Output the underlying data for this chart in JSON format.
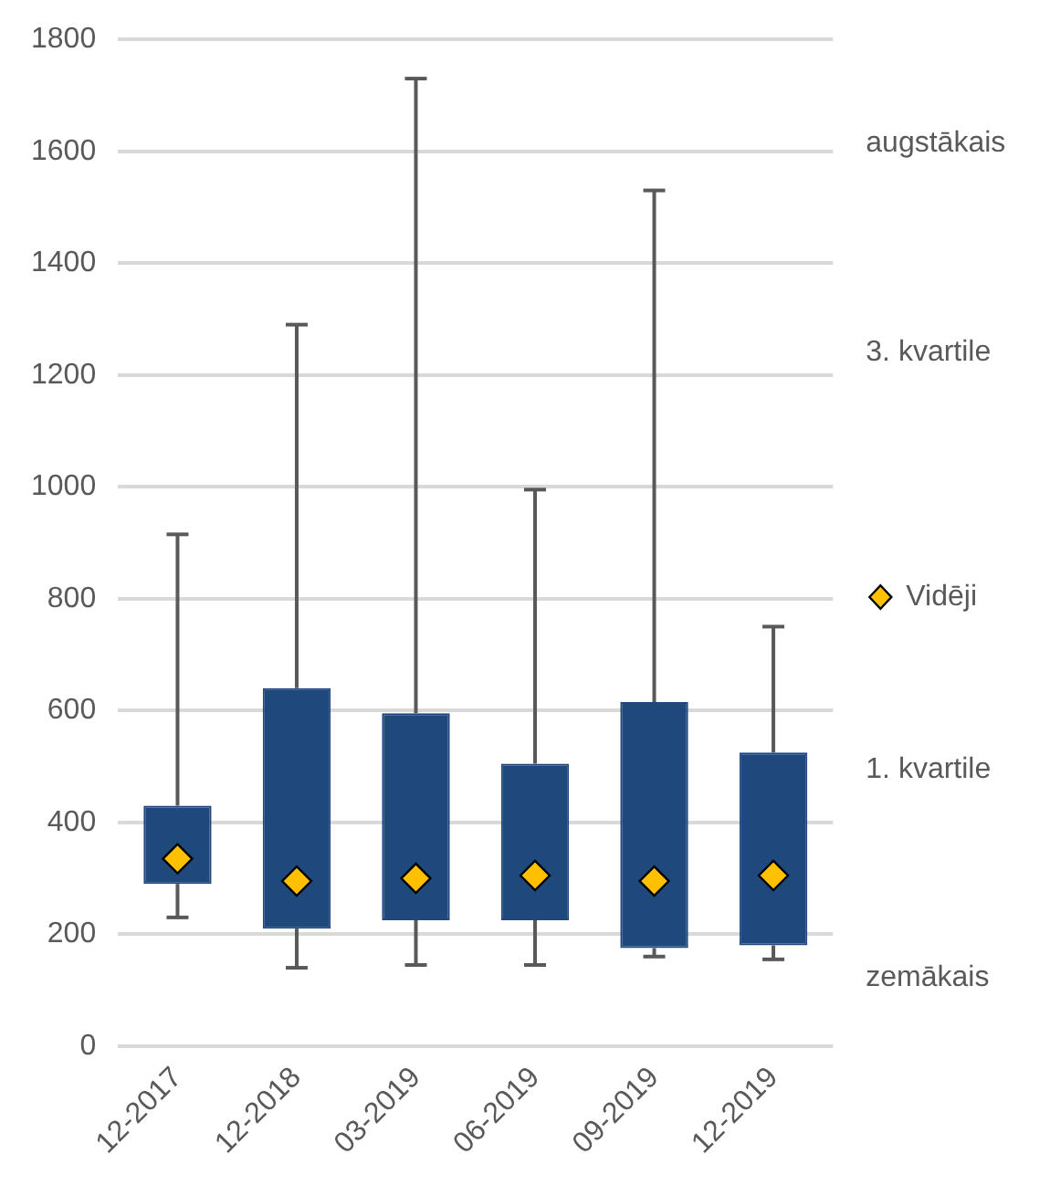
{
  "chart_data": {
    "type": "box",
    "categories": [
      "12-2017",
      "12-2018",
      "03-2019",
      "06-2019",
      "09-2019",
      "12-2019"
    ],
    "ylim": [
      0,
      1800
    ],
    "yticks": [
      0,
      200,
      400,
      600,
      800,
      1000,
      1200,
      1400,
      1600,
      1800
    ],
    "grid": "y",
    "legend": "right",
    "annotations": [
      "augstākais",
      "3. kvartile",
      "1. kvartile",
      "zemākais"
    ],
    "series": [
      {
        "type": "box",
        "color": "#1f497d",
        "boxes": [
          {
            "low": 230,
            "q1": 290,
            "q3": 430,
            "high": 915
          },
          {
            "low": 140,
            "q1": 210,
            "q3": 640,
            "high": 1290
          },
          {
            "low": 145,
            "q1": 225,
            "q3": 595,
            "high": 1730
          },
          {
            "low": 145,
            "q1": 225,
            "q3": 505,
            "high": 995
          },
          {
            "low": 160,
            "q1": 175,
            "q3": 615,
            "high": 1530
          },
          {
            "low": 155,
            "q1": 180,
            "q3": 525,
            "high": 750
          }
        ]
      },
      {
        "type": "scatter",
        "name": "Vidēji",
        "color": "#ffc000",
        "marker": "diamond",
        "x": [
          "12-2017",
          "12-2018",
          "03-2019",
          "06-2019",
          "09-2019",
          "12-2019"
        ],
        "values": [
          335,
          295,
          300,
          305,
          295,
          305
        ]
      }
    ]
  }
}
